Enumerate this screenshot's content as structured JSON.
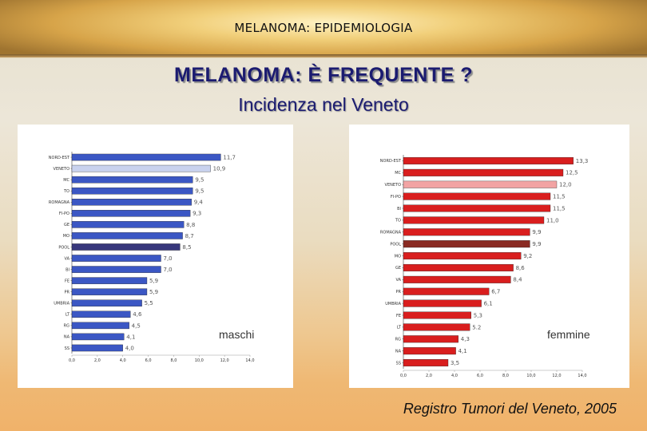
{
  "header": {
    "banner_title": "MELANOMA: EPIDEMIOLOGIA",
    "title": "MELANOMA: È FREQUENTE ?",
    "subtitle": "Incidenza nel Veneto"
  },
  "source": "Registro Tumori del Veneto, 2005",
  "chart_data": [
    {
      "type": "bar",
      "orientation": "horizontal",
      "series_label": "maschi",
      "categories": [
        "NORD-EST",
        "VENETO",
        "MC",
        "TO",
        "ROMAGNA",
        "FI-PO",
        "GE",
        "MO",
        "POOL",
        "VA",
        "BI",
        "FE",
        "PR",
        "UMBRIA",
        "LT",
        "RG",
        "NA",
        "SS"
      ],
      "values": [
        11.7,
        10.9,
        9.5,
        9.5,
        9.4,
        9.3,
        8.8,
        8.7,
        8.5,
        7.0,
        7.0,
        5.9,
        5.9,
        5.5,
        4.6,
        4.5,
        4.1,
        4.0
      ],
      "value_labels": [
        "11,7",
        "10,9",
        "9,5",
        "9,5",
        "9,4",
        "9,3",
        "8,8",
        "8,7",
        "8,5",
        "7,0",
        "7,0",
        "5,9",
        "5,9",
        "5,5",
        "4,6",
        "4,5",
        "4,1",
        "4,0"
      ],
      "xlim": [
        0,
        14
      ],
      "x_ticks": [
        "0,0",
        "2,0",
        "4,0",
        "6,0",
        "8,0",
        "10,0",
        "12,0",
        "14,0"
      ],
      "colors": {
        "default": "#3b57c4",
        "VENETO": "#c9d2ee",
        "POOL": "#37377c"
      }
    },
    {
      "type": "bar",
      "orientation": "horizontal",
      "series_label": "femmine",
      "categories": [
        "NORD-EST",
        "MC",
        "VENETO",
        "FI-PO",
        "BI",
        "TO",
        "ROMAGNA",
        "POOL",
        "MO",
        "GE",
        "VA",
        "PR",
        "UMBRIA",
        "FE",
        "LT",
        "RG",
        "NA",
        "SS"
      ],
      "values": [
        13.3,
        12.5,
        12.0,
        11.5,
        11.5,
        11.0,
        9.9,
        9.9,
        9.2,
        8.6,
        8.4,
        6.7,
        6.1,
        5.3,
        5.2,
        4.3,
        4.1,
        3.5
      ],
      "value_labels": [
        "13,3",
        "12,5",
        "12,0",
        "11,5",
        "11,5",
        "11,0",
        "9,9",
        "9,9",
        "9,2",
        "8,6",
        "8,4",
        "6,7",
        "6,1",
        "5,3",
        "5.2",
        "4,3",
        "4,1",
        "3,5"
      ],
      "xlim": [
        0,
        14
      ],
      "x_ticks": [
        "0,0",
        "2,0",
        "4,0",
        "6,0",
        "8,0",
        "10,0",
        "12,0",
        "14,0"
      ],
      "colors": {
        "default": "#d91e1e",
        "VENETO": "#f2a3a3",
        "POOL": "#8a2a22"
      }
    }
  ]
}
